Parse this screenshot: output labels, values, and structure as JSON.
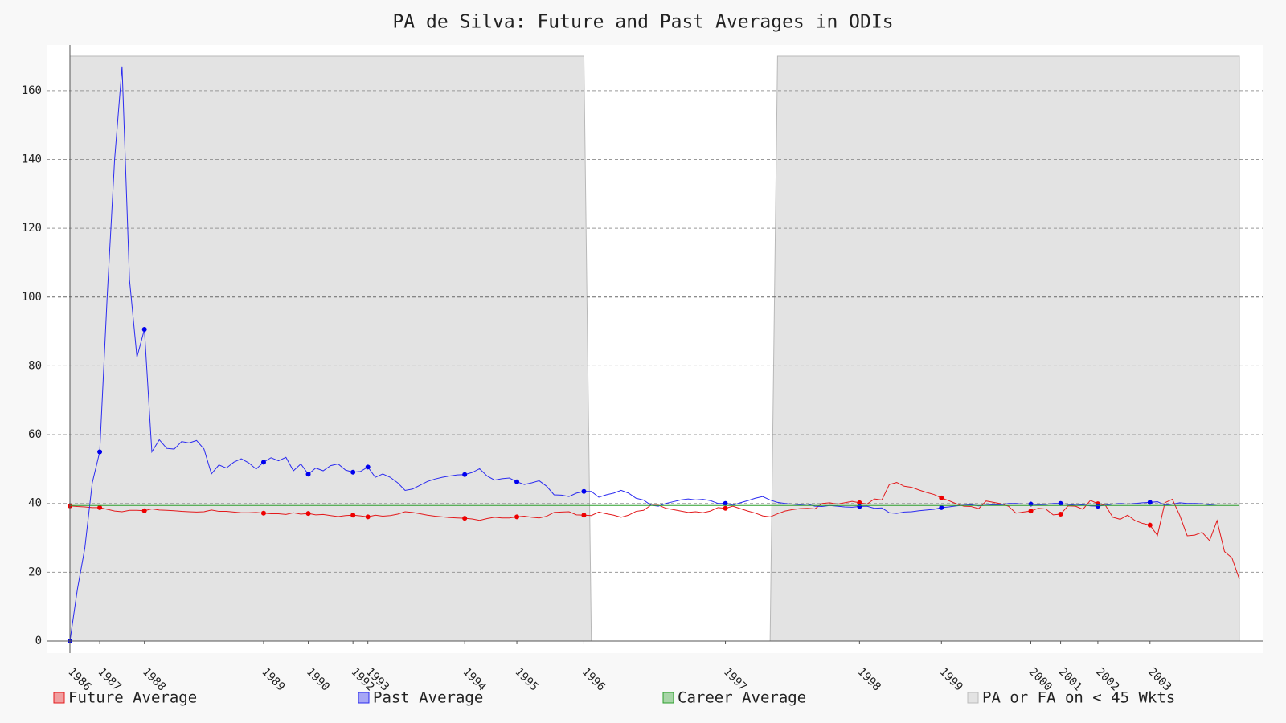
{
  "chart_data": {
    "type": "line",
    "title": "PA de Silva: Future and Past Averages in ODIs",
    "xlim": [
      0,
      157
    ],
    "ylim": [
      0,
      170
    ],
    "yticks": [
      0,
      20,
      40,
      60,
      80,
      100,
      120,
      140,
      160
    ],
    "xticks": [
      {
        "value": 0,
        "label": "1986"
      },
      {
        "value": 4,
        "label": "1987"
      },
      {
        "value": 10,
        "label": "1988"
      },
      {
        "value": 26,
        "label": "1989"
      },
      {
        "value": 32,
        "label": "1990"
      },
      {
        "value": 38,
        "label": "1992"
      },
      {
        "value": 40,
        "label": "1993"
      },
      {
        "value": 53,
        "label": "1994"
      },
      {
        "value": 60,
        "label": "1995"
      },
      {
        "value": 69,
        "label": "1996"
      },
      {
        "value": 88,
        "label": "1997"
      },
      {
        "value": 106,
        "label": "1998"
      },
      {
        "value": 117,
        "label": "1999"
      },
      {
        "value": 129,
        "label": "2000"
      },
      {
        "value": 133,
        "label": "2001"
      },
      {
        "value": 138,
        "label": "2002"
      },
      {
        "value": 145,
        "label": "2003"
      }
    ],
    "grid": true,
    "legend": "bottom",
    "series": [
      {
        "name": "Future Average",
        "color": "#e31a1c",
        "style": "line",
        "markers": true,
        "x": [
          0,
          1,
          2,
          3,
          4,
          5,
          6,
          7,
          8,
          9,
          10,
          11,
          12,
          13,
          14,
          15,
          16,
          17,
          18,
          19,
          20,
          21,
          22,
          23,
          24,
          25,
          26,
          27,
          28,
          29,
          30,
          31,
          32,
          33,
          34,
          35,
          36,
          37,
          38,
          39,
          40,
          41,
          42,
          43,
          44,
          45,
          46,
          47,
          48,
          49,
          50,
          51,
          52,
          53,
          54,
          55,
          56,
          57,
          58,
          59,
          60,
          61,
          62,
          63,
          64,
          65,
          66,
          67,
          68,
          69,
          70,
          71,
          72,
          73,
          74,
          75,
          76,
          77,
          78,
          79,
          80,
          81,
          82,
          83,
          84,
          85,
          86,
          87,
          88,
          89,
          90,
          91,
          92,
          93,
          94,
          95,
          96,
          97,
          98,
          99,
          100,
          101,
          102,
          103,
          104,
          105,
          106,
          107,
          108,
          109,
          110,
          111,
          112,
          113,
          114,
          115,
          116,
          117,
          118,
          119,
          120,
          121,
          122,
          123,
          124,
          125,
          126,
          127,
          128,
          129,
          130,
          131,
          132,
          133,
          134,
          135,
          136,
          137,
          138,
          139,
          140,
          141,
          142,
          143,
          144,
          145,
          146,
          147,
          148,
          149,
          150,
          151,
          152,
          153,
          154,
          155,
          156,
          157
        ],
        "values": [
          39.3,
          39.1,
          39,
          38.8,
          38.8,
          38.3,
          37.8,
          37.6,
          38,
          38,
          37.9,
          38.4,
          38.1,
          38,
          37.9,
          37.7,
          37.6,
          37.5,
          37.6,
          38.1,
          37.7,
          37.7,
          37.5,
          37.3,
          37.3,
          37.4,
          37.2,
          37,
          37,
          36.8,
          37.3,
          36.9,
          37.1,
          36.7,
          36.8,
          36.5,
          36.2,
          36.5,
          36.6,
          36.4,
          36.1,
          36.6,
          36.3,
          36.5,
          36.9,
          37.6,
          37.4,
          37,
          36.6,
          36.3,
          36.1,
          35.9,
          35.8,
          35.7,
          35.5,
          35.1,
          35.6,
          36,
          35.8,
          35.8,
          36.1,
          36.3,
          36,
          35.8,
          36.3,
          37.4,
          37.5,
          37.6,
          36.7,
          36.6,
          36.5,
          37.5,
          37,
          36.6,
          36,
          36.6,
          37.7,
          38,
          39.5,
          39.5,
          38.6,
          38.2,
          37.8,
          37.4,
          37.6,
          37.3,
          37.8,
          38.8,
          38.6,
          39.2,
          38.5,
          37.8,
          37.2,
          36.4,
          36.1,
          37,
          37.8,
          38.2,
          38.5,
          38.6,
          38.4,
          40,
          40.2,
          39.8,
          40.2,
          40.6,
          40.2,
          39.8,
          41.3,
          41,
          45.5,
          46.1,
          45,
          44.7,
          43.9,
          43.2,
          42.6,
          41.6,
          40.8,
          39.9,
          39.2,
          39.1,
          38.5,
          40.7,
          40.3,
          39.9,
          39.2,
          37.2,
          37.5,
          37.8,
          38.6,
          38.4,
          36.7,
          36.9,
          39.3,
          39.2,
          38.3,
          40.9,
          39.9,
          39.5,
          36,
          35.4,
          36.6,
          35,
          34.2,
          33.7,
          30.7,
          40.2,
          41.2,
          36.5,
          30.6,
          30.8,
          31.6,
          29.2,
          35,
          26,
          24.2,
          18
        ]
      },
      {
        "name": "Past Average",
        "color": "#2b2bf0",
        "style": "line",
        "markers": true,
        "x": [
          0,
          1,
          2,
          3,
          4,
          5,
          6,
          7,
          8,
          9,
          10,
          11,
          12,
          13,
          14,
          15,
          16,
          17,
          18,
          19,
          20,
          21,
          22,
          23,
          24,
          25,
          26,
          27,
          28,
          29,
          30,
          31,
          32,
          33,
          34,
          35,
          36,
          37,
          38,
          39,
          40,
          41,
          42,
          43,
          44,
          45,
          46,
          47,
          48,
          49,
          50,
          51,
          52,
          53,
          54,
          55,
          56,
          57,
          58,
          59,
          60,
          61,
          62,
          63,
          64,
          65,
          66,
          67,
          68,
          69,
          70,
          71,
          72,
          73,
          74,
          75,
          76,
          77,
          78,
          79,
          80,
          81,
          82,
          83,
          84,
          85,
          86,
          87,
          88,
          89,
          90,
          91,
          92,
          93,
          94,
          95,
          96,
          97,
          98,
          99,
          100,
          101,
          102,
          103,
          104,
          105,
          106,
          107,
          108,
          109,
          110,
          111,
          112,
          113,
          114,
          115,
          116,
          117,
          118,
          119,
          120,
          121,
          122,
          123,
          124,
          125,
          126,
          127,
          128,
          129,
          130,
          131,
          132,
          133,
          134,
          135,
          136,
          137,
          138,
          139,
          140,
          141,
          142,
          143,
          144,
          145,
          146,
          147,
          148,
          149,
          150,
          151,
          152,
          153,
          154,
          155,
          156,
          157
        ],
        "values": [
          0,
          15,
          27,
          46,
          55,
          100,
          140,
          167,
          105,
          82.5,
          90.6,
          55,
          58.5,
          56,
          55.8,
          58,
          57.6,
          58.3,
          55.8,
          48.6,
          51.2,
          50.3,
          52,
          53,
          51.8,
          50,
          52,
          53.3,
          52.4,
          53.4,
          49.5,
          51.5,
          48.5,
          50.3,
          49.5,
          51,
          51.5,
          49.7,
          49.1,
          49.3,
          50.6,
          47.6,
          48.6,
          47.6,
          46,
          43.8,
          44.2,
          45.3,
          46.4,
          47.1,
          47.6,
          48,
          48.3,
          48.4,
          49,
          50.1,
          48,
          46.8,
          47.2,
          47.4,
          46.3,
          45.5,
          46,
          46.6,
          45,
          42.5,
          42.4,
          42,
          43,
          43.5,
          43.5,
          41.8,
          42.5,
          43,
          43.8,
          43,
          41.5,
          41,
          39.5,
          39.2,
          40,
          40.5,
          41,
          41.3,
          41,
          41.2,
          40.8,
          40,
          40,
          39.5,
          40.2,
          40.8,
          41.5,
          42,
          41,
          40.3,
          40,
          39.8,
          39.6,
          39.8,
          39.2,
          39.1,
          39.4,
          39.2,
          39,
          38.9,
          39.1,
          39.2,
          38.6,
          38.7,
          37.3,
          37.1,
          37.5,
          37.6,
          37.9,
          38.1,
          38.3,
          38.8,
          39,
          39.3,
          39.5,
          39.6,
          39.3,
          39.5,
          39.6,
          39.6,
          40,
          40,
          39.8,
          39.8,
          39.6,
          39.7,
          40,
          40,
          39.7,
          39.5,
          39.6,
          39.3,
          39.2,
          39.5,
          39.8,
          40,
          39.8,
          40,
          40.2,
          40.3,
          40.5,
          39.5,
          39.8,
          40.2,
          40,
          40,
          39.9,
          39.6,
          39.8,
          39.8,
          39.8,
          39.8
        ]
      },
      {
        "name": "Career Average",
        "color": "#2ca02c",
        "style": "line",
        "markers": false,
        "x": [
          0,
          157
        ],
        "values": [
          39.4,
          39.4
        ]
      },
      {
        "name": "PA or FA on < 45 Wkts",
        "color": "#e3e3e3",
        "style": "area",
        "markers": false,
        "x": [
          0,
          69,
          70,
          94,
          95,
          157
        ],
        "values": [
          170,
          170,
          0,
          0,
          170,
          170
        ]
      }
    ]
  }
}
